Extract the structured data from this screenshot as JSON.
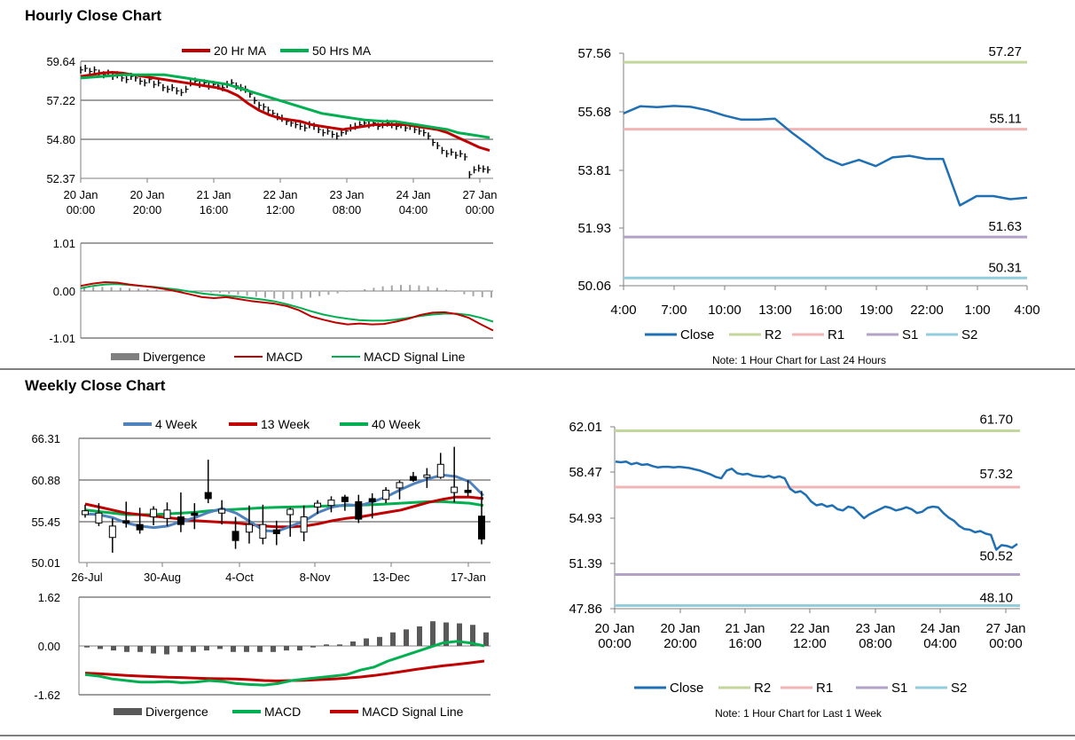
{
  "sections": {
    "hourly_title": "Hourly Close Chart",
    "weekly_title": "Weekly Close Chart"
  },
  "colors": {
    "close": "#1f6fb4",
    "r2": "#c3d69b",
    "r1": "#f2b5b5",
    "s1": "#b3a2c7",
    "s2": "#93cddd",
    "ma_red": "#c00000",
    "ma_green": "#00b050",
    "ma_blue": "#4f81bd",
    "divergence_light": "#a6a6a6",
    "divergence_dark": "#595959"
  },
  "chart_data": [
    {
      "id": "hourly_price",
      "type": "line",
      "title": "",
      "legend": [
        "20 Hr MA",
        "50 Hrs MA"
      ],
      "legend_position": "top",
      "x_ticks": [
        "20 Jan\n00:00",
        "20 Jan\n20:00",
        "21 Jan\n16:00",
        "22 Jan\n12:00",
        "23 Jan\n08:00",
        "24 Jan\n04:00",
        "27 Jan\n00:00"
      ],
      "y_ticks": [
        "59.64",
        "57.22",
        "54.80",
        "52.37"
      ],
      "ylim": [
        52.37,
        59.64
      ],
      "price": [
        59.1,
        59.2,
        59.0,
        59.1,
        58.9,
        58.8,
        58.9,
        58.7,
        58.8,
        58.6,
        58.5,
        58.7,
        58.6,
        58.4,
        58.3,
        58.5,
        58.2,
        58.3,
        58.0,
        57.9,
        58.0,
        57.8,
        57.7,
        57.9,
        58.3,
        58.4,
        58.2,
        58.3,
        58.1,
        58.2,
        58.1,
        58.0,
        58.2,
        58.3,
        58.1,
        58.0,
        57.9,
        57.6,
        57.2,
        56.9,
        56.8,
        56.6,
        56.4,
        56.2,
        56.1,
        55.9,
        55.8,
        55.7,
        55.6,
        55.5,
        55.7,
        55.6,
        55.4,
        55.2,
        55.3,
        55.1,
        55.0,
        55.2,
        55.3,
        55.5,
        55.6,
        55.7,
        55.8,
        55.7,
        55.8,
        55.6,
        55.7,
        55.8,
        55.7,
        55.6,
        55.7,
        55.5,
        55.6,
        55.4,
        55.3,
        55.2,
        55.0,
        54.6,
        54.4,
        54.1,
        53.9,
        54.0,
        53.8,
        53.9,
        53.7,
        52.6,
        52.9,
        53.0,
        52.95,
        52.9
      ],
      "series": [
        {
          "name": "20 Hr MA",
          "values": [
            58.7,
            58.8,
            58.9,
            58.95,
            58.9,
            58.8,
            58.7,
            58.6,
            58.5,
            58.4,
            58.3,
            58.2,
            58.1,
            58.0,
            57.8,
            57.5,
            57.0,
            56.6,
            56.3,
            56.1,
            56.0,
            55.9,
            55.7,
            55.6,
            55.5,
            55.4,
            55.5,
            55.6,
            55.7,
            55.7,
            55.7,
            55.7,
            55.6,
            55.5,
            55.4,
            55.2,
            54.9,
            54.6,
            54.3,
            54.1
          ]
        },
        {
          "name": "50 Hrs MA",
          "values": [
            58.6,
            58.65,
            58.7,
            58.75,
            58.8,
            58.8,
            58.8,
            58.8,
            58.8,
            58.7,
            58.6,
            58.5,
            58.4,
            58.3,
            58.2,
            58.0,
            57.8,
            57.6,
            57.4,
            57.2,
            57.0,
            56.8,
            56.6,
            56.4,
            56.3,
            56.2,
            56.1,
            56.0,
            55.95,
            55.9,
            55.9,
            55.8,
            55.7,
            55.6,
            55.5,
            55.4,
            55.2,
            55.1,
            55.0,
            54.9
          ]
        }
      ]
    },
    {
      "id": "hourly_macd",
      "type": "line",
      "legend": [
        "Divergence",
        "MACD",
        "MACD Signal Line"
      ],
      "legend_position": "bottom",
      "y_ticks": [
        "1.01",
        "0.00",
        "-1.01"
      ],
      "ylim": [
        -1.01,
        1.01
      ],
      "divergence": [
        0.05,
        0.08,
        0.08,
        0.07,
        0.06,
        0.05,
        0.04,
        0.03,
        0.02,
        0.01,
        0.0,
        -0.01,
        -0.02,
        -0.03,
        -0.04,
        -0.05,
        -0.07,
        -0.09,
        -0.11,
        -0.13,
        -0.15,
        -0.17,
        -0.18,
        -0.18,
        -0.17,
        -0.15,
        -0.12,
        -0.09,
        -0.06,
        -0.03,
        0.0,
        0.03,
        0.06,
        0.09,
        0.11,
        0.12,
        0.12,
        0.11,
        0.09,
        0.06,
        0.02,
        -0.03,
        -0.08,
        -0.12,
        -0.14,
        -0.15
      ],
      "series": [
        {
          "name": "MACD",
          "values": [
            0.1,
            0.15,
            0.18,
            0.17,
            0.13,
            0.1,
            0.07,
            0.03,
            -0.02,
            -0.08,
            -0.14,
            -0.16,
            -0.14,
            -0.18,
            -0.22,
            -0.25,
            -0.28,
            -0.33,
            -0.42,
            -0.55,
            -0.62,
            -0.68,
            -0.72,
            -0.7,
            -0.72,
            -0.71,
            -0.66,
            -0.6,
            -0.52,
            -0.47,
            -0.46,
            -0.5,
            -0.58,
            -0.72,
            -0.85
          ]
        },
        {
          "name": "MACD Signal Line",
          "values": [
            0.05,
            0.1,
            0.13,
            0.14,
            0.12,
            0.1,
            0.08,
            0.05,
            0.02,
            -0.02,
            -0.06,
            -0.09,
            -0.11,
            -0.13,
            -0.16,
            -0.19,
            -0.23,
            -0.29,
            -0.36,
            -0.44,
            -0.51,
            -0.56,
            -0.6,
            -0.63,
            -0.64,
            -0.64,
            -0.62,
            -0.58,
            -0.54,
            -0.51,
            -0.49,
            -0.49,
            -0.52,
            -0.58,
            -0.66
          ]
        }
      ]
    },
    {
      "id": "hourly_24h",
      "type": "line",
      "note": "Note: 1 Hour Chart for Last 24 Hours",
      "legend": [
        "Close",
        "R2",
        "R1",
        "S1",
        "S2"
      ],
      "legend_position": "bottom",
      "x_ticks": [
        "4:00",
        "7:00",
        "10:00",
        "13:00",
        "16:00",
        "19:00",
        "22:00",
        "1:00",
        "4:00"
      ],
      "y_ticks": [
        "57.56",
        "55.68",
        "53.81",
        "51.93",
        "50.06"
      ],
      "ylim": [
        50.06,
        57.56
      ],
      "levels": [
        {
          "name": "R2",
          "value": 57.27,
          "label": "57.27"
        },
        {
          "name": "R1",
          "value": 55.11,
          "label": "55.11"
        },
        {
          "name": "S1",
          "value": 51.63,
          "label": "51.63"
        },
        {
          "name": "S2",
          "value": 50.31,
          "label": "50.31"
        }
      ],
      "close": [
        55.62,
        55.85,
        55.82,
        55.86,
        55.83,
        55.72,
        55.55,
        55.42,
        55.42,
        55.45,
        55.0,
        54.6,
        54.18,
        53.95,
        54.12,
        53.92,
        54.2,
        54.25,
        54.15,
        54.15,
        52.65,
        52.95,
        52.95,
        52.85,
        52.9
      ]
    },
    {
      "id": "weekly_price",
      "type": "candlestick",
      "legend": [
        "4 Week",
        "13 Week",
        "40 Week"
      ],
      "legend_position": "top",
      "x_ticks": [
        "26-Jul",
        "30-Aug",
        "4-Oct",
        "8-Nov",
        "13-Dec",
        "17-Jan"
      ],
      "y_ticks": [
        "66.31",
        "60.88",
        "55.45",
        "50.01"
      ],
      "ylim": [
        50.01,
        66.31
      ],
      "candles": [
        {
          "o": 56.3,
          "h": 57.6,
          "l": 55.9,
          "c": 56.8
        },
        {
          "o": 55.2,
          "h": 57.8,
          "l": 54.8,
          "c": 56.5
        },
        {
          "o": 53.3,
          "h": 55.8,
          "l": 51.3,
          "c": 54.8
        },
        {
          "o": 55.5,
          "h": 58.0,
          "l": 54.6,
          "c": 55.2
        },
        {
          "o": 55.0,
          "h": 57.2,
          "l": 53.8,
          "c": 54.3
        },
        {
          "o": 56.0,
          "h": 57.4,
          "l": 54.9,
          "c": 57.0
        },
        {
          "o": 55.8,
          "h": 57.9,
          "l": 54.8,
          "c": 56.9
        },
        {
          "o": 56.0,
          "h": 59.2,
          "l": 54.0,
          "c": 55.0
        },
        {
          "o": 56.5,
          "h": 57.8,
          "l": 54.4,
          "c": 56.2
        },
        {
          "o": 59.2,
          "h": 63.5,
          "l": 57.8,
          "c": 58.4
        },
        {
          "o": 56.5,
          "h": 58.2,
          "l": 55.0,
          "c": 57.0
        },
        {
          "o": 54.1,
          "h": 56.0,
          "l": 51.8,
          "c": 52.9
        },
        {
          "o": 54.0,
          "h": 57.5,
          "l": 52.5,
          "c": 55.0
        },
        {
          "o": 53.2,
          "h": 57.6,
          "l": 52.4,
          "c": 55.0
        },
        {
          "o": 54.3,
          "h": 55.5,
          "l": 52.3,
          "c": 53.8
        },
        {
          "o": 56.3,
          "h": 57.2,
          "l": 53.4,
          "c": 57.0
        },
        {
          "o": 54.0,
          "h": 57.5,
          "l": 52.8,
          "c": 56.0
        },
        {
          "o": 57.3,
          "h": 58.2,
          "l": 56.4,
          "c": 57.8
        },
        {
          "o": 57.5,
          "h": 58.7,
          "l": 56.6,
          "c": 58.2
        },
        {
          "o": 58.6,
          "h": 58.9,
          "l": 56.8,
          "c": 58.0
        },
        {
          "o": 58.0,
          "h": 58.9,
          "l": 55.2,
          "c": 55.7
        },
        {
          "o": 58.4,
          "h": 59.1,
          "l": 55.8,
          "c": 58.0
        },
        {
          "o": 58.3,
          "h": 59.9,
          "l": 57.8,
          "c": 59.5
        },
        {
          "o": 59.8,
          "h": 60.8,
          "l": 58.3,
          "c": 60.5
        },
        {
          "o": 61.3,
          "h": 61.9,
          "l": 60.6,
          "c": 60.8
        },
        {
          "o": 61.2,
          "h": 62.4,
          "l": 59.8,
          "c": 61.5
        },
        {
          "o": 61.2,
          "h": 64.4,
          "l": 61.0,
          "c": 62.9
        },
        {
          "o": 59.2,
          "h": 65.2,
          "l": 57.9,
          "c": 59.9
        },
        {
          "o": 59.5,
          "h": 60.8,
          "l": 58.7,
          "c": 59.2
        },
        {
          "o": 56.1,
          "h": 59.4,
          "l": 52.4,
          "c": 53.1
        }
      ],
      "series": [
        {
          "name": "4 Week",
          "values": [
            56.4,
            56.3,
            55.9,
            55.2,
            54.8,
            54.6,
            54.8,
            55.4,
            55.9,
            56.6,
            57.1,
            56.5,
            55.4,
            54.2,
            54.1,
            54.8,
            55.5,
            56.6,
            57.3,
            57.6,
            57.5,
            58.0,
            58.7,
            59.6,
            60.4,
            61.0,
            61.5,
            61.3,
            60.6,
            58.8
          ]
        },
        {
          "name": "13 Week",
          "values": [
            57.7,
            57.3,
            56.9,
            56.5,
            56.3,
            56.1,
            55.9,
            55.7,
            55.5,
            55.4,
            55.3,
            55.2,
            55.0,
            54.8,
            54.7,
            54.7,
            54.8,
            55.1,
            55.5,
            55.8,
            56.0,
            56.3,
            56.6,
            56.9,
            57.4,
            57.9,
            58.3,
            58.6,
            58.6,
            58.4
          ]
        },
        {
          "name": "40 Week",
          "values": [
            56.9,
            56.7,
            56.5,
            56.3,
            56.3,
            56.3,
            56.4,
            56.5,
            56.6,
            56.8,
            56.9,
            57.0,
            57.1,
            57.2,
            57.25,
            57.3,
            57.35,
            57.4,
            57.45,
            57.5,
            57.55,
            57.6,
            57.7,
            57.8,
            57.9,
            58.0,
            58.0,
            57.9,
            57.8,
            57.5
          ]
        }
      ]
    },
    {
      "id": "weekly_macd",
      "type": "line",
      "legend": [
        "Divergence",
        "MACD",
        "MACD Signal Line"
      ],
      "legend_position": "bottom",
      "y_ticks": [
        "1.62",
        "0.00",
        "-1.62"
      ],
      "ylim": [
        -1.62,
        1.62
      ],
      "divergence": [
        -0.05,
        -0.1,
        -0.15,
        -0.2,
        -0.2,
        -0.25,
        -0.28,
        -0.2,
        -0.2,
        -0.15,
        -0.1,
        -0.2,
        -0.2,
        -0.2,
        -0.2,
        -0.15,
        -0.15,
        -0.05,
        0.05,
        0.05,
        0.15,
        0.25,
        0.3,
        0.45,
        0.55,
        0.65,
        0.82,
        0.78,
        0.75,
        0.7,
        0.45
      ],
      "series": [
        {
          "name": "MACD",
          "values": [
            -0.95,
            -1.0,
            -1.1,
            -1.15,
            -1.2,
            -1.2,
            -1.18,
            -1.22,
            -1.2,
            -1.15,
            -1.18,
            -1.25,
            -1.28,
            -1.3,
            -1.25,
            -1.15,
            -1.1,
            -1.05,
            -1.0,
            -0.95,
            -0.8,
            -0.7,
            -0.5,
            -0.35,
            -0.2,
            -0.05,
            0.1,
            0.15,
            0.1,
            0.0
          ]
        },
        {
          "name": "MACD Signal Line",
          "values": [
            -0.9,
            -0.92,
            -0.95,
            -0.98,
            -1.0,
            -1.02,
            -1.04,
            -1.05,
            -1.07,
            -1.08,
            -1.09,
            -1.1,
            -1.12,
            -1.15,
            -1.16,
            -1.15,
            -1.14,
            -1.12,
            -1.1,
            -1.07,
            -1.03,
            -0.98,
            -0.92,
            -0.85,
            -0.78,
            -0.72,
            -0.66,
            -0.61,
            -0.56,
            -0.5
          ]
        }
      ]
    },
    {
      "id": "weekly_1wk",
      "type": "line",
      "note": "Note: 1 Hour Chart for Last 1 Week",
      "legend": [
        "Close",
        "R2",
        "R1",
        "S1",
        "S2"
      ],
      "legend_position": "bottom",
      "x_ticks": [
        "20 Jan\n00:00",
        "20 Jan\n20:00",
        "21 Jan\n16:00",
        "22 Jan\n12:00",
        "23 Jan\n08:00",
        "24 Jan\n04:00",
        "27 Jan\n00:00"
      ],
      "y_ticks": [
        "62.01",
        "58.47",
        "54.93",
        "51.39",
        "47.86"
      ],
      "ylim": [
        47.86,
        62.01
      ],
      "levels": [
        {
          "name": "R2",
          "value": 61.7,
          "label": "61.70"
        },
        {
          "name": "R1",
          "value": 57.32,
          "label": "57.32"
        },
        {
          "name": "S1",
          "value": 50.52,
          "label": "50.52"
        },
        {
          "name": "S2",
          "value": 48.1,
          "label": "48.10"
        }
      ],
      "close": [
        59.3,
        59.25,
        59.3,
        59.1,
        59.2,
        59.05,
        59.1,
        58.95,
        58.85,
        58.9,
        58.9,
        58.85,
        58.9,
        58.85,
        58.8,
        58.7,
        58.6,
        58.45,
        58.3,
        58.1,
        58.0,
        58.6,
        58.75,
        58.4,
        58.3,
        58.35,
        58.2,
        58.15,
        58.1,
        58.2,
        58.05,
        58.15,
        58.0,
        57.2,
        56.9,
        57.0,
        56.7,
        56.2,
        55.9,
        56.0,
        55.8,
        55.9,
        55.6,
        55.5,
        55.8,
        55.7,
        55.3,
        54.9,
        55.2,
        55.4,
        55.6,
        55.8,
        55.7,
        55.5,
        55.6,
        55.75,
        55.6,
        55.3,
        55.4,
        55.7,
        55.8,
        55.75,
        55.3,
        54.95,
        54.7,
        54.3,
        54.05,
        54.0,
        53.8,
        53.9,
        53.7,
        53.6,
        52.45,
        52.8,
        52.75,
        52.6,
        52.9
      ]
    }
  ]
}
